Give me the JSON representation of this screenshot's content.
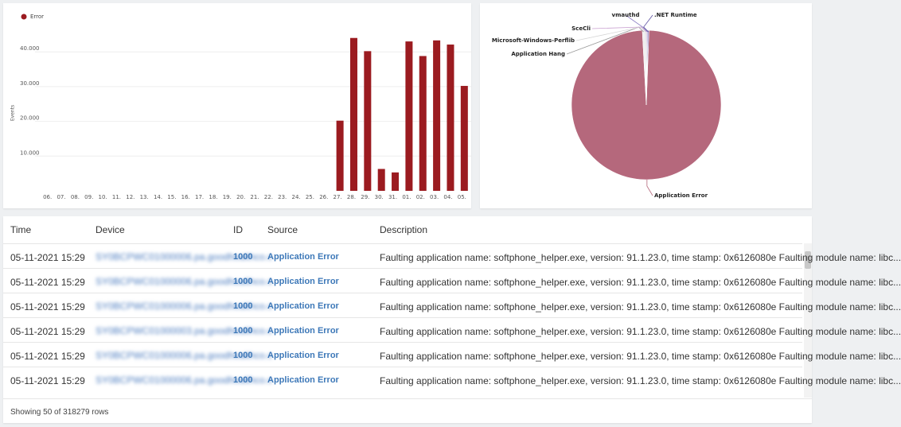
{
  "chart_data": [
    {
      "type": "bar",
      "y_label": "Events",
      "legend": "Error",
      "color": "#9b1b20",
      "categories": [
        "06.",
        "07.",
        "08.",
        "09.",
        "10.",
        "11.",
        "12.",
        "13.",
        "14.",
        "15.",
        "16.",
        "17.",
        "18.",
        "19.",
        "20.",
        "21.",
        "22.",
        "23.",
        "24.",
        "25.",
        "26.",
        "27.",
        "28.",
        "29.",
        "30.",
        "31.",
        "01.",
        "02.",
        "03.",
        "04.",
        "05."
      ],
      "values": [
        0,
        0,
        0,
        0,
        0,
        0,
        0,
        0,
        0,
        0,
        0,
        0,
        0,
        0,
        0,
        0,
        0,
        0,
        0,
        0,
        0,
        20200,
        44000,
        40200,
        6300,
        5300,
        43000,
        38800,
        43300,
        42100,
        30200
      ],
      "ylim": [
        0,
        46000
      ],
      "yticks": [
        {
          "value": 10000,
          "label": "10.000"
        },
        {
          "value": 20000,
          "label": "20.000"
        },
        {
          "value": 30000,
          "label": "30.000"
        },
        {
          "value": 40000,
          "label": "40.000"
        }
      ],
      "grid": true
    },
    {
      "type": "pie",
      "categories": [
        "Application Error",
        "Application Hang",
        "Microsoft-Windows-Perflib",
        "SceCli",
        "vmauthd",
        ".NET Runtime"
      ],
      "values": [
        98.6,
        0.5,
        0.3,
        0.2,
        0.2,
        0.2
      ],
      "colors": [
        "#b5687c",
        "#eeeeee",
        "#d6d6d6",
        "#c9a0d0",
        "#8a7cc2",
        "#5a4ea0"
      ]
    }
  ],
  "table": {
    "columns": [
      "Time",
      "Device",
      "ID",
      "Source",
      "Description"
    ],
    "rows": [
      [
        "05-11-2021 15:29",
        "SY0BCPWC01000006.pa.goodhealthco.c",
        "1000",
        "Application Error",
        "Faulting application name: softphone_helper.exe, version: 91.1.23.0, time stamp: 0x6126080e Faulting module name: libc..."
      ],
      [
        "05-11-2021 15:29",
        "SY0BCPWC01000006.pa.goodhealthco.c",
        "1000",
        "Application Error",
        "Faulting application name: softphone_helper.exe, version: 91.1.23.0, time stamp: 0x6126080e Faulting module name: libc..."
      ],
      [
        "05-11-2021 15:29",
        "SY0BCPWC01000006.pa.goodhealthco.c",
        "1000",
        "Application Error",
        "Faulting application name: softphone_helper.exe, version: 91.1.23.0, time stamp: 0x6126080e Faulting module name: libc..."
      ],
      [
        "05-11-2021 15:29",
        "SY0BCPWC01000003.pa.goodhealthco.c",
        "1000",
        "Application Error",
        "Faulting application name: softphone_helper.exe, version: 91.1.23.0, time stamp: 0x6126080e Faulting module name: libc..."
      ],
      [
        "05-11-2021 15:29",
        "SY0BCPWC01000006.pa.goodhealthco.c",
        "1000",
        "Application Error",
        "Faulting application name: softphone_helper.exe, version: 91.1.23.0, time stamp: 0x6126080e Faulting module name: libc..."
      ],
      [
        "05-11-2021 15:29",
        "SY0BCPWC01000006.pa.goodhealthco.c",
        "1000",
        "Application Error",
        "Faulting application name: softphone_helper.exe, version: 91.1.23.0, time stamp: 0x6126080e Faulting module name: libc..."
      ]
    ],
    "footer": "Showing 50 of 318279 rows"
  }
}
